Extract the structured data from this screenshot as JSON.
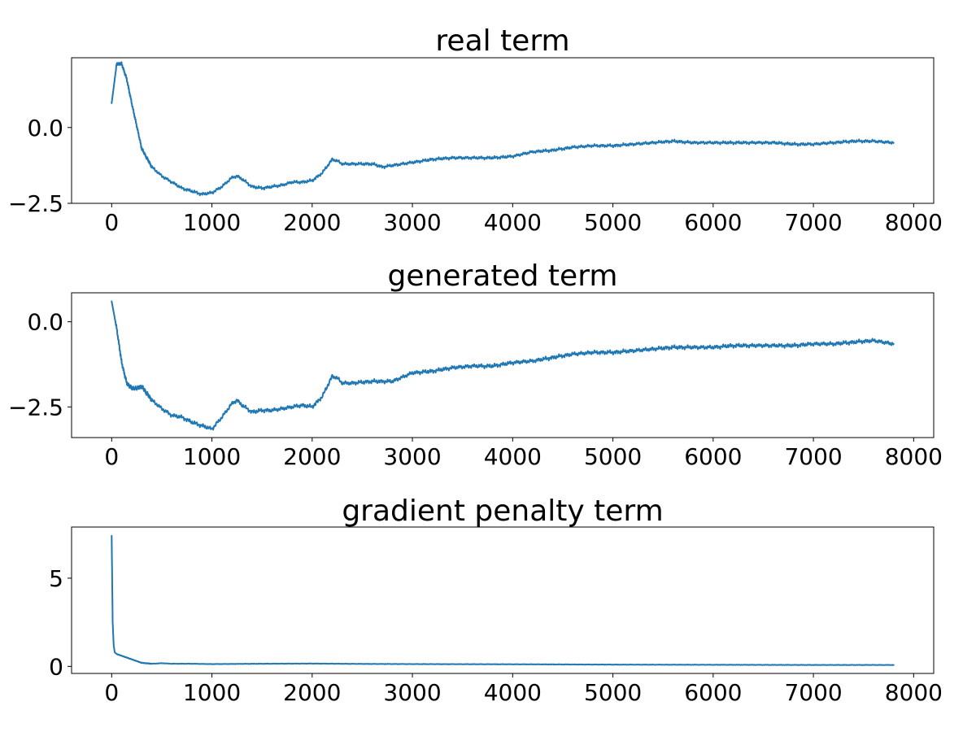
{
  "colors": {
    "series": "#1f77b4",
    "axis": "#000000"
  },
  "chart_data": [
    {
      "type": "line",
      "title": "real term",
      "xlabel": "",
      "ylabel": "",
      "xlim": [
        -400,
        8200
      ],
      "ylim": [
        -2.5,
        2.3
      ],
      "xticks": [
        0,
        1000,
        2000,
        3000,
        4000,
        5000,
        6000,
        7000,
        8000
      ],
      "yticks": [
        -2.5,
        0.0
      ],
      "ytick_labels": [
        "−2.5",
        "0.0"
      ],
      "grid": false,
      "noise_amplitude": 0.06,
      "series": [
        {
          "x": [
            0,
            50,
            100,
            150,
            200,
            300,
            400,
            500,
            600,
            700,
            800,
            900,
            1000,
            1100,
            1200,
            1250,
            1300,
            1400,
            1500,
            1600,
            1700,
            1800,
            1900,
            2000,
            2100,
            2200,
            2250,
            2300,
            2400,
            2500,
            2600,
            2700,
            2800,
            2900,
            3000,
            3200,
            3400,
            3600,
            3800,
            4000,
            4200,
            4400,
            4600,
            4800,
            5000,
            5200,
            5400,
            5600,
            5800,
            6000,
            6200,
            6400,
            6600,
            6800,
            7000,
            7200,
            7400,
            7600,
            7800
          ],
          "y": [
            0.8,
            2.1,
            2.1,
            1.6,
            0.8,
            -0.7,
            -1.3,
            -1.6,
            -1.8,
            -2.0,
            -2.1,
            -2.2,
            -2.15,
            -1.95,
            -1.65,
            -1.6,
            -1.7,
            -1.95,
            -2.0,
            -1.95,
            -1.9,
            -1.8,
            -1.8,
            -1.75,
            -1.5,
            -1.05,
            -1.1,
            -1.2,
            -1.2,
            -1.2,
            -1.2,
            -1.3,
            -1.25,
            -1.2,
            -1.15,
            -1.05,
            -1.0,
            -1.0,
            -1.0,
            -0.95,
            -0.8,
            -0.75,
            -0.65,
            -0.6,
            -0.6,
            -0.55,
            -0.5,
            -0.45,
            -0.5,
            -0.5,
            -0.5,
            -0.5,
            -0.5,
            -0.55,
            -0.55,
            -0.5,
            -0.45,
            -0.45,
            -0.5
          ]
        }
      ]
    },
    {
      "type": "line",
      "title": "generated term",
      "xlabel": "",
      "ylabel": "",
      "xlim": [
        -400,
        8200
      ],
      "ylim": [
        -3.4,
        0.85
      ],
      "xticks": [
        0,
        1000,
        2000,
        3000,
        4000,
        5000,
        6000,
        7000,
        8000
      ],
      "yticks": [
        -2.5,
        0.0
      ],
      "ytick_labels": [
        "−2.5",
        "0.0"
      ],
      "grid": false,
      "noise_amplitude": 0.07,
      "series": [
        {
          "x": [
            0,
            50,
            100,
            150,
            200,
            250,
            300,
            400,
            500,
            600,
            700,
            800,
            900,
            1000,
            1100,
            1200,
            1250,
            1300,
            1400,
            1500,
            1600,
            1700,
            1800,
            1900,
            2000,
            2100,
            2200,
            2250,
            2300,
            2400,
            2600,
            2800,
            3000,
            3200,
            3400,
            3600,
            3800,
            4000,
            4200,
            4400,
            4600,
            4800,
            5000,
            5200,
            5400,
            5600,
            5800,
            6000,
            6200,
            6400,
            6600,
            6800,
            7000,
            7200,
            7400,
            7600,
            7800
          ],
          "y": [
            0.6,
            -0.2,
            -1.2,
            -1.8,
            -1.95,
            -1.95,
            -1.9,
            -2.3,
            -2.55,
            -2.75,
            -2.8,
            -2.95,
            -3.05,
            -3.15,
            -2.8,
            -2.4,
            -2.3,
            -2.45,
            -2.65,
            -2.6,
            -2.6,
            -2.55,
            -2.5,
            -2.45,
            -2.5,
            -2.2,
            -1.6,
            -1.65,
            -1.8,
            -1.8,
            -1.75,
            -1.75,
            -1.5,
            -1.45,
            -1.35,
            -1.3,
            -1.3,
            -1.2,
            -1.15,
            -1.05,
            -0.95,
            -0.9,
            -0.9,
            -0.85,
            -0.8,
            -0.75,
            -0.75,
            -0.75,
            -0.7,
            -0.7,
            -0.7,
            -0.7,
            -0.65,
            -0.65,
            -0.6,
            -0.55,
            -0.65
          ]
        }
      ]
    },
    {
      "type": "line",
      "title": "gradient penalty term",
      "xlabel": "",
      "ylabel": "",
      "xlim": [
        -400,
        8200
      ],
      "ylim": [
        -0.4,
        7.9
      ],
      "xticks": [
        0,
        1000,
        2000,
        3000,
        4000,
        5000,
        6000,
        7000,
        8000
      ],
      "yticks": [
        0,
        5
      ],
      "ytick_labels": [
        "0",
        "5"
      ],
      "grid": false,
      "noise_amplitude": 0.015,
      "series": [
        {
          "x": [
            0,
            5,
            10,
            20,
            30,
            50,
            100,
            150,
            200,
            300,
            400,
            500,
            600,
            800,
            1000,
            1500,
            2000,
            2500,
            3000,
            4000,
            5000,
            6000,
            7000,
            7800
          ],
          "y": [
            7.4,
            5.0,
            2.5,
            1.2,
            0.8,
            0.7,
            0.6,
            0.5,
            0.4,
            0.2,
            0.15,
            0.18,
            0.15,
            0.15,
            0.13,
            0.15,
            0.16,
            0.14,
            0.13,
            0.12,
            0.1,
            0.09,
            0.08,
            0.08
          ]
        }
      ]
    }
  ]
}
